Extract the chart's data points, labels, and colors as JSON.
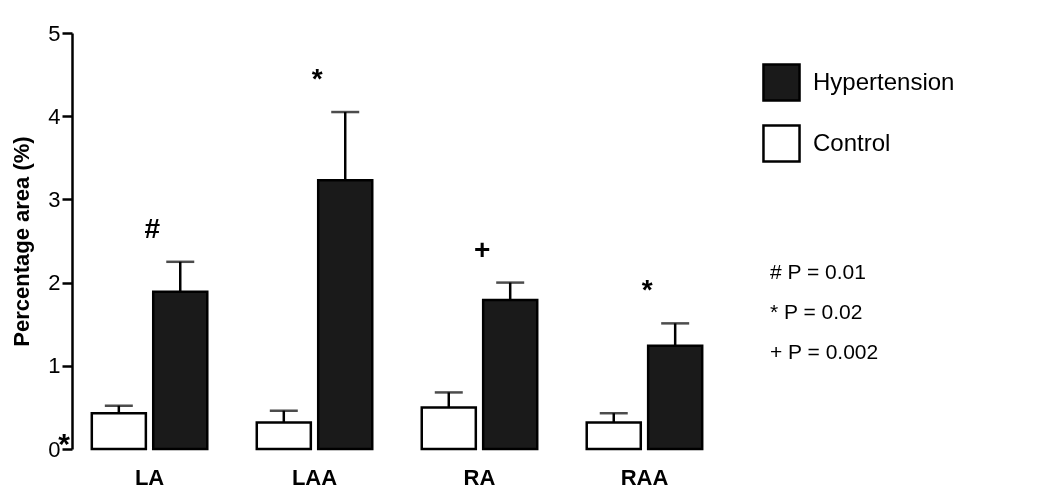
{
  "chart_data": {
    "type": "bar",
    "ylabel": "Percentage area (%)",
    "categories": [
      "LA",
      "LAA",
      "RA",
      "RAA"
    ],
    "series": [
      {
        "name": "Control",
        "color": "#ffffff",
        "values": [
          0.43,
          0.32,
          0.5,
          0.32
        ],
        "errors": [
          [
            0.43,
            0.52
          ],
          [
            0.32,
            0.46
          ],
          [
            0.5,
            0.68
          ],
          [
            0.32,
            0.43
          ]
        ]
      },
      {
        "name": "Hypertension",
        "color": "#1a1a1a",
        "values": [
          1.89,
          3.23,
          1.79,
          1.24
        ],
        "errors": [
          [
            1.89,
            2.25
          ],
          [
            3.23,
            4.05
          ],
          [
            1.79,
            2.0
          ],
          [
            1.24,
            1.51
          ]
        ]
      }
    ],
    "ylim": [
      0,
      5
    ],
    "yticks": [
      0,
      1,
      2,
      3,
      4,
      5
    ],
    "grid": false,
    "legend": "top right",
    "annotations": [
      "#",
      "*",
      "+",
      "*",
      "*",
      "# P = 0.01",
      "* P = 0.02",
      "+ P = 0.002"
    ]
  }
}
